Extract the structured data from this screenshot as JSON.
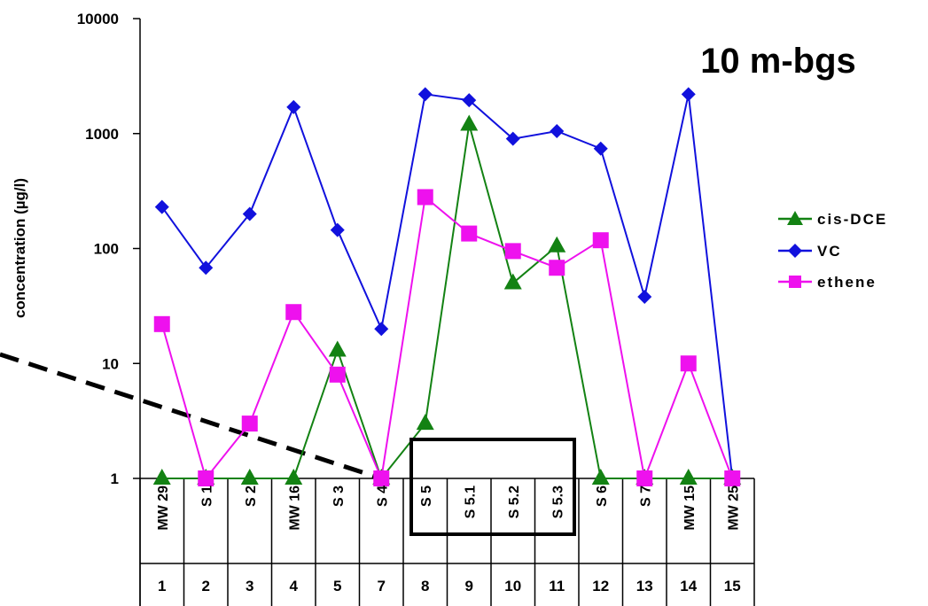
{
  "chart_data": {
    "type": "line",
    "title": "10 m-bgs",
    "ylabel": "concentration (µg/l)",
    "xlabel": "",
    "yscale": "log",
    "ylim": [
      1,
      10000
    ],
    "yticks": [
      "1",
      "10",
      "100",
      "1000",
      "10000"
    ],
    "categories": [
      "MW 29",
      "S 1",
      "S 2",
      "MW 16",
      "S 3",
      "S 4",
      "S 5",
      "S 5.1",
      "S 5.2",
      "S 5.3",
      "S 6",
      "S 7",
      "MW 15",
      "MW 25"
    ],
    "category_numbers": [
      "1",
      "2",
      "3",
      "4",
      "5",
      "7",
      "8",
      "9",
      "10",
      "11",
      "12",
      "13",
      "14",
      "15"
    ],
    "legend_position": "right",
    "series": [
      {
        "name": "cis-DCE",
        "color": "#138213",
        "marker": "triangle",
        "values": [
          1,
          1,
          1,
          1,
          13,
          1,
          3,
          1200,
          50,
          105,
          1,
          1,
          1,
          1
        ]
      },
      {
        "name": "VC",
        "color": "#1111dd",
        "marker": "diamond",
        "values": [
          230,
          68,
          200,
          1700,
          145,
          20,
          2200,
          1950,
          900,
          1050,
          740,
          38,
          2200,
          1
        ]
      },
      {
        "name": "ethene",
        "color": "#ee11ee",
        "marker": "square",
        "values": [
          22,
          1,
          3,
          28,
          8,
          1,
          280,
          135,
          95,
          68,
          118,
          1,
          10,
          1
        ]
      }
    ]
  }
}
